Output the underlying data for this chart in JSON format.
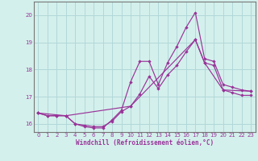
{
  "xlabel": "Windchill (Refroidissement éolien,°C)",
  "background_color": "#d4f0ec",
  "grid_color": "#b0d8d8",
  "line_color": "#993399",
  "ylim": [
    15.7,
    20.5
  ],
  "xlim": [
    -0.5,
    23.5
  ],
  "yticks": [
    16,
    17,
    18,
    19,
    20
  ],
  "xticks": [
    0,
    1,
    2,
    3,
    4,
    5,
    6,
    7,
    8,
    9,
    10,
    11,
    12,
    13,
    14,
    15,
    16,
    17,
    18,
    19,
    20,
    21,
    22,
    23
  ],
  "line1_x": [
    0,
    1,
    2,
    3,
    4,
    5,
    6,
    7,
    8,
    9,
    10,
    11,
    12,
    13,
    14,
    15,
    16,
    17,
    18,
    19,
    20,
    21,
    22,
    23
  ],
  "line1_y": [
    16.4,
    16.3,
    16.3,
    16.3,
    16.0,
    15.9,
    15.85,
    15.85,
    16.15,
    16.5,
    17.55,
    18.3,
    18.3,
    17.45,
    18.25,
    18.85,
    19.55,
    20.1,
    18.4,
    18.3,
    17.45,
    17.35,
    17.25,
    17.2
  ],
  "line2_x": [
    0,
    1,
    2,
    3,
    4,
    5,
    6,
    7,
    8,
    9,
    10,
    11,
    12,
    13,
    14,
    15,
    16,
    17,
    18,
    19,
    20,
    21,
    22,
    23
  ],
  "line2_y": [
    16.4,
    16.3,
    16.3,
    16.3,
    16.0,
    15.95,
    15.9,
    15.9,
    16.1,
    16.45,
    16.65,
    17.1,
    17.75,
    17.3,
    17.8,
    18.15,
    18.65,
    19.1,
    18.25,
    18.15,
    17.25,
    17.15,
    17.05,
    17.05
  ],
  "line3_x": [
    0,
    3,
    10,
    17,
    18,
    20,
    23
  ],
  "line3_y": [
    16.4,
    16.3,
    16.65,
    19.1,
    18.25,
    17.25,
    17.2
  ]
}
